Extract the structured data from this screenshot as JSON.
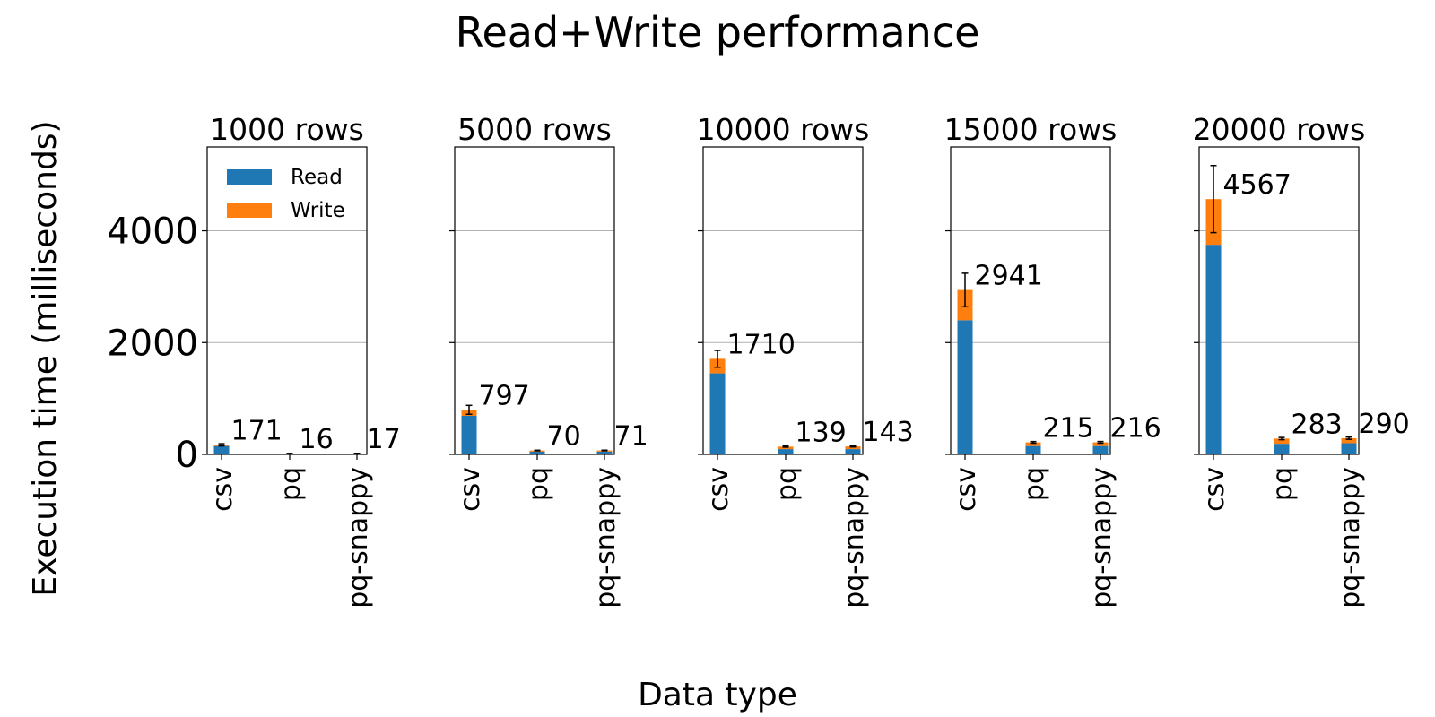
{
  "figure": {
    "title": "Read+Write performance",
    "xlabel": "Data type",
    "ylabel": "Execution time (milliseconds)"
  },
  "colors": {
    "read": "#1f77b4",
    "write": "#ff7f0e",
    "grid": "#b0b0b0",
    "errorbar": "#000000"
  },
  "chart_data": {
    "type": "bar",
    "stacked": true,
    "categories": [
      "csv",
      "pq",
      "pq-snappy"
    ],
    "ylim": [
      0,
      5500
    ],
    "yticks": [
      0,
      2000,
      4000
    ],
    "grid": "horizontal",
    "legend": {
      "placement": "top-left",
      "entries": [
        "Read",
        "Write"
      ]
    },
    "panels": [
      {
        "title": "1000 rows",
        "read": [
          150,
          10,
          10
        ],
        "write": [
          21,
          6,
          7
        ],
        "totals": [
          "171",
          "16",
          "17"
        ],
        "error": [
          20,
          3,
          3
        ]
      },
      {
        "title": "5000 rows",
        "read": [
          690,
          50,
          50
        ],
        "write": [
          107,
          20,
          21
        ],
        "totals": [
          "797",
          "70",
          "71"
        ],
        "error": [
          80,
          5,
          5
        ]
      },
      {
        "title": "10000 rows",
        "read": [
          1450,
          95,
          95
        ],
        "write": [
          260,
          44,
          48
        ],
        "totals": [
          "1710",
          "139",
          "143"
        ],
        "error": [
          150,
          10,
          10
        ]
      },
      {
        "title": "15000 rows",
        "read": [
          2400,
          150,
          150
        ],
        "write": [
          541,
          65,
          66
        ],
        "totals": [
          "2941",
          "215",
          "216"
        ],
        "error": [
          300,
          15,
          15
        ]
      },
      {
        "title": "20000 rows",
        "read": [
          3750,
          190,
          200
        ],
        "write": [
          817,
          93,
          90
        ],
        "totals": [
          "4567",
          "283",
          "290"
        ],
        "error": [
          600,
          20,
          20
        ]
      }
    ]
  }
}
